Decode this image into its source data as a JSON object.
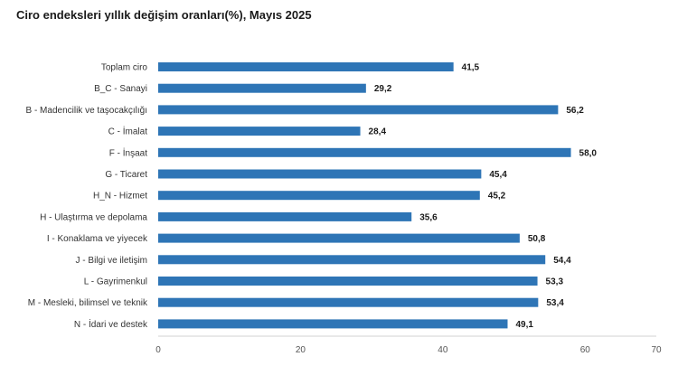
{
  "colors": {
    "bar": "#2E75B6",
    "axis": "#d0d0d0"
  },
  "chart_data": {
    "type": "bar",
    "orientation": "horizontal",
    "title": "Ciro endeksleri yıllık değişim oranları(%), Mayıs 2025",
    "categories": [
      "Toplam ciro",
      "B_C - Sanayi",
      "B - Madencilik ve taşocakçılığı",
      "C - İmalat",
      "F - İnşaat",
      "G - Ticaret",
      "H_N - Hizmet",
      "H - Ulaştırma ve depolama",
      "I - Konaklama ve yiyecek",
      "J - Bilgi ve iletişim",
      "L - Gayrimenkul",
      "M - Mesleki, bilimsel ve teknik",
      "N - İdari ve destek"
    ],
    "values": [
      41.5,
      29.2,
      56.2,
      28.4,
      58.0,
      45.4,
      45.2,
      35.6,
      50.8,
      54.4,
      53.3,
      53.4,
      49.1
    ],
    "value_labels": [
      "41,5",
      "29,2",
      "56,2",
      "28,4",
      "58,0",
      "45,4",
      "45,2",
      "35,6",
      "50,8",
      "54,4",
      "53,3",
      "53,4",
      "49,1"
    ],
    "xlim": [
      0,
      70
    ],
    "xticks": [
      0,
      20,
      40,
      60,
      70
    ],
    "xtick_labels": [
      "0",
      "20",
      "40",
      "60",
      "70"
    ],
    "xlabel": "",
    "ylabel": "",
    "grid": false,
    "legend": "none"
  }
}
